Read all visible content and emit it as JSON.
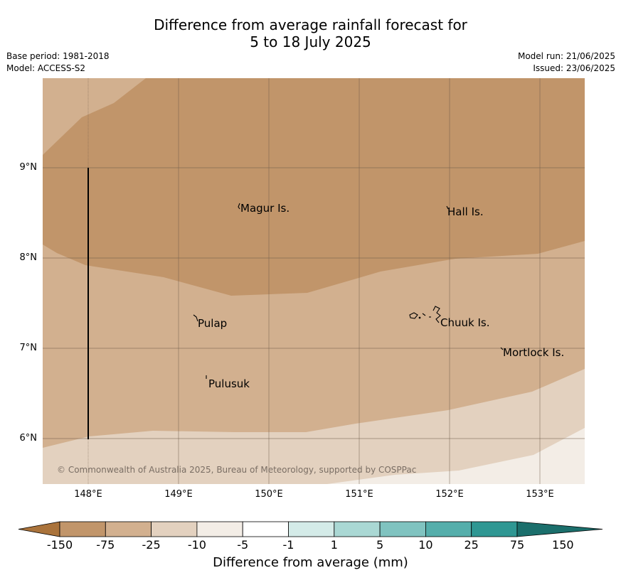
{
  "header": {
    "title_line1": "Difference from average rainfall forecast for",
    "title_line2": "5 to 18 July 2025",
    "base_period": "Base period: 1981-2018",
    "model": "Model: ACCESS-S2",
    "model_run": "Model run: 21/06/2025",
    "issued": "Issued: 23/06/2025"
  },
  "map": {
    "lat_labels": [
      "9°N",
      "8°N",
      "7°N",
      "6°N"
    ],
    "lon_labels": [
      "148°E",
      "149°E",
      "150°E",
      "151°E",
      "152°E",
      "153°E"
    ],
    "places": {
      "magur": "Magur Is.",
      "hall": "Hall Is.",
      "pulap": "Pulap",
      "chuuk": "Chuuk Is.",
      "mortlock": "Mortlock Is.",
      "pulusuk": "Pulusuk"
    },
    "copyright": "© Commonwealth of Australia 2025, Bureau of Meteorology, supported by COSPPac",
    "colors": {
      "neg75": "#c1956a",
      "neg25": "#d2b08f",
      "neg10": "#e3d1bf",
      "neg5": "#f3ede6",
      "grid": "#6e5a48"
    }
  },
  "colorbar": {
    "ticks": [
      "-150",
      "-75",
      "-25",
      "-10",
      "-5",
      "-1",
      "1",
      "5",
      "10",
      "25",
      "75",
      "150"
    ],
    "colors": [
      "#aa733b",
      "#c1956a",
      "#d2b08f",
      "#e3d1bf",
      "#f3ede6",
      "#ffffff",
      "#d4ebe8",
      "#aad8d4",
      "#80c3c0",
      "#55aeab",
      "#2f9793",
      "#1b6f6c"
    ],
    "label": "Difference from average (mm)"
  }
}
